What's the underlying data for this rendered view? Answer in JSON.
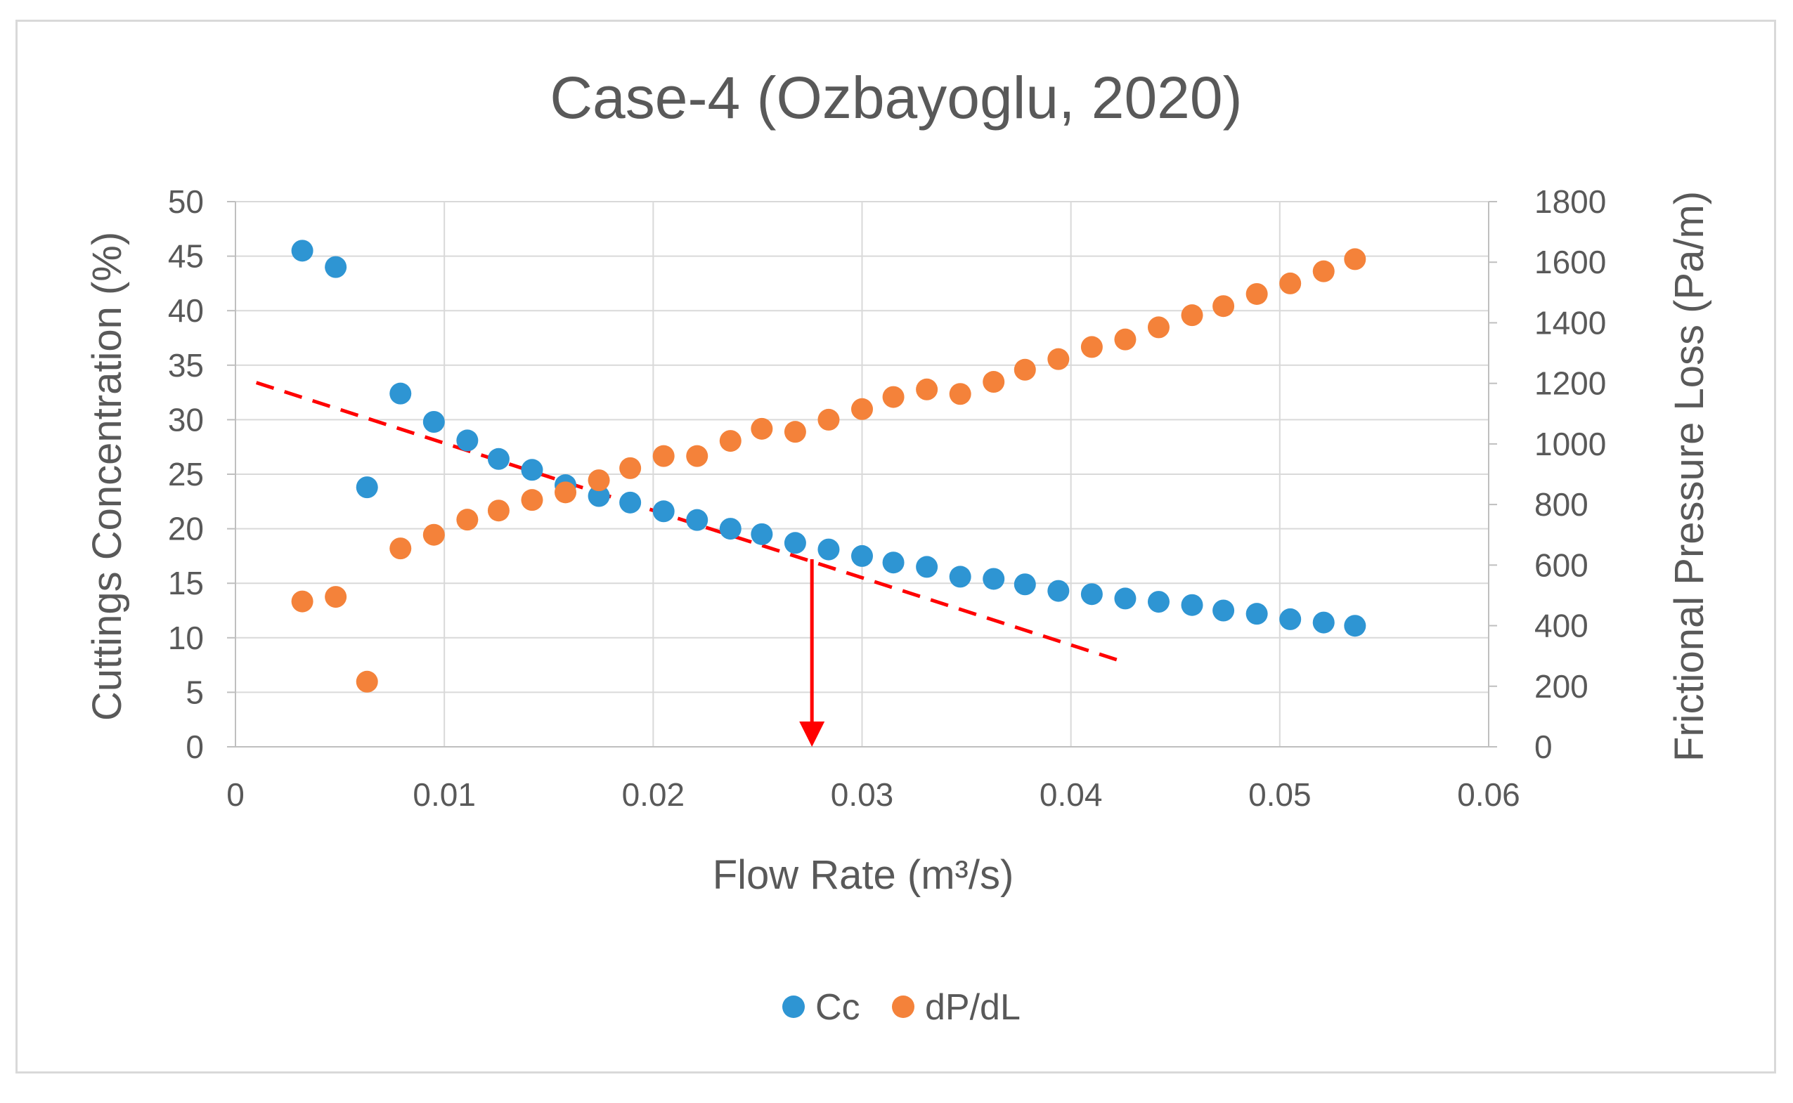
{
  "chart_data": {
    "type": "scatter",
    "title": "Case-4 (Ozbayoglu, 2020)",
    "xlabel": "Flow Rate (m³/s)",
    "ylabel_left": "Cuttings Concentration (%)",
    "ylabel_right": "Frictional Pressure Loss (Pa/m)",
    "xlim": [
      0,
      0.06
    ],
    "ylim_left": [
      0,
      50
    ],
    "ylim_right": [
      0,
      1800
    ],
    "x_ticks": [
      "0",
      "0.01",
      "0.02",
      "0.03",
      "0.04",
      "0.05",
      "0.06"
    ],
    "y_left_ticks": [
      "0",
      "5",
      "10",
      "15",
      "20",
      "25",
      "30",
      "35",
      "40",
      "45",
      "50"
    ],
    "y_right_ticks": [
      "0",
      "200",
      "400",
      "600",
      "800",
      "1000",
      "1200",
      "1400",
      "1600",
      "1800"
    ],
    "grid": true,
    "legend_position": "bottom",
    "series": [
      {
        "name": "Cc",
        "axis": "left",
        "color": "#2e95d3",
        "x": [
          0.0032,
          0.0048,
          0.0063,
          0.0079,
          0.0095,
          0.0111,
          0.0126,
          0.0142,
          0.0158,
          0.0174,
          0.0189,
          0.0205,
          0.0221,
          0.0237,
          0.0252,
          0.0268,
          0.0284,
          0.03,
          0.0315,
          0.0331,
          0.0347,
          0.0363,
          0.0378,
          0.0394,
          0.041,
          0.0426,
          0.0442,
          0.0458,
          0.0473,
          0.0489,
          0.0505,
          0.0521,
          0.0536
        ],
        "y": [
          45.5,
          44.0,
          23.8,
          32.4,
          29.8,
          28.1,
          26.4,
          25.4,
          24.0,
          23.0,
          22.4,
          21.6,
          20.8,
          20.0,
          19.5,
          18.7,
          18.1,
          17.5,
          16.9,
          16.5,
          15.6,
          15.4,
          14.9,
          14.3,
          14.0,
          13.6,
          13.3,
          13.0,
          12.5,
          12.2,
          11.7,
          11.4,
          11.1
        ]
      },
      {
        "name": "dP/dL",
        "axis": "right",
        "color": "#f4823a",
        "x": [
          0.0032,
          0.0048,
          0.0063,
          0.0079,
          0.0095,
          0.0111,
          0.0126,
          0.0142,
          0.0158,
          0.0174,
          0.0189,
          0.0205,
          0.0221,
          0.0237,
          0.0252,
          0.0268,
          0.0284,
          0.03,
          0.0315,
          0.0331,
          0.0347,
          0.0363,
          0.0378,
          0.0394,
          0.041,
          0.0426,
          0.0442,
          0.0458,
          0.0473,
          0.0489,
          0.0505,
          0.0521,
          0.0536
        ],
        "y": [
          480,
          495,
          215,
          655,
          700,
          750,
          780,
          815,
          840,
          880,
          920,
          960,
          960,
          1010,
          1050,
          1040,
          1080,
          1115,
          1155,
          1180,
          1165,
          1205,
          1245,
          1280,
          1320,
          1345,
          1385,
          1425,
          1455,
          1495,
          1530,
          1570,
          1610
        ]
      }
    ],
    "annotations": {
      "trendline": {
        "axis": "left",
        "color": "#ff0000",
        "style": "dashed",
        "x": [
          0.001,
          0.0425
        ],
        "y": [
          33.4,
          7.8
        ]
      },
      "arrow": {
        "axis": "left",
        "color": "#ff0000",
        "x": 0.0276,
        "y_from": 17.2,
        "y_to": 0
      }
    }
  }
}
